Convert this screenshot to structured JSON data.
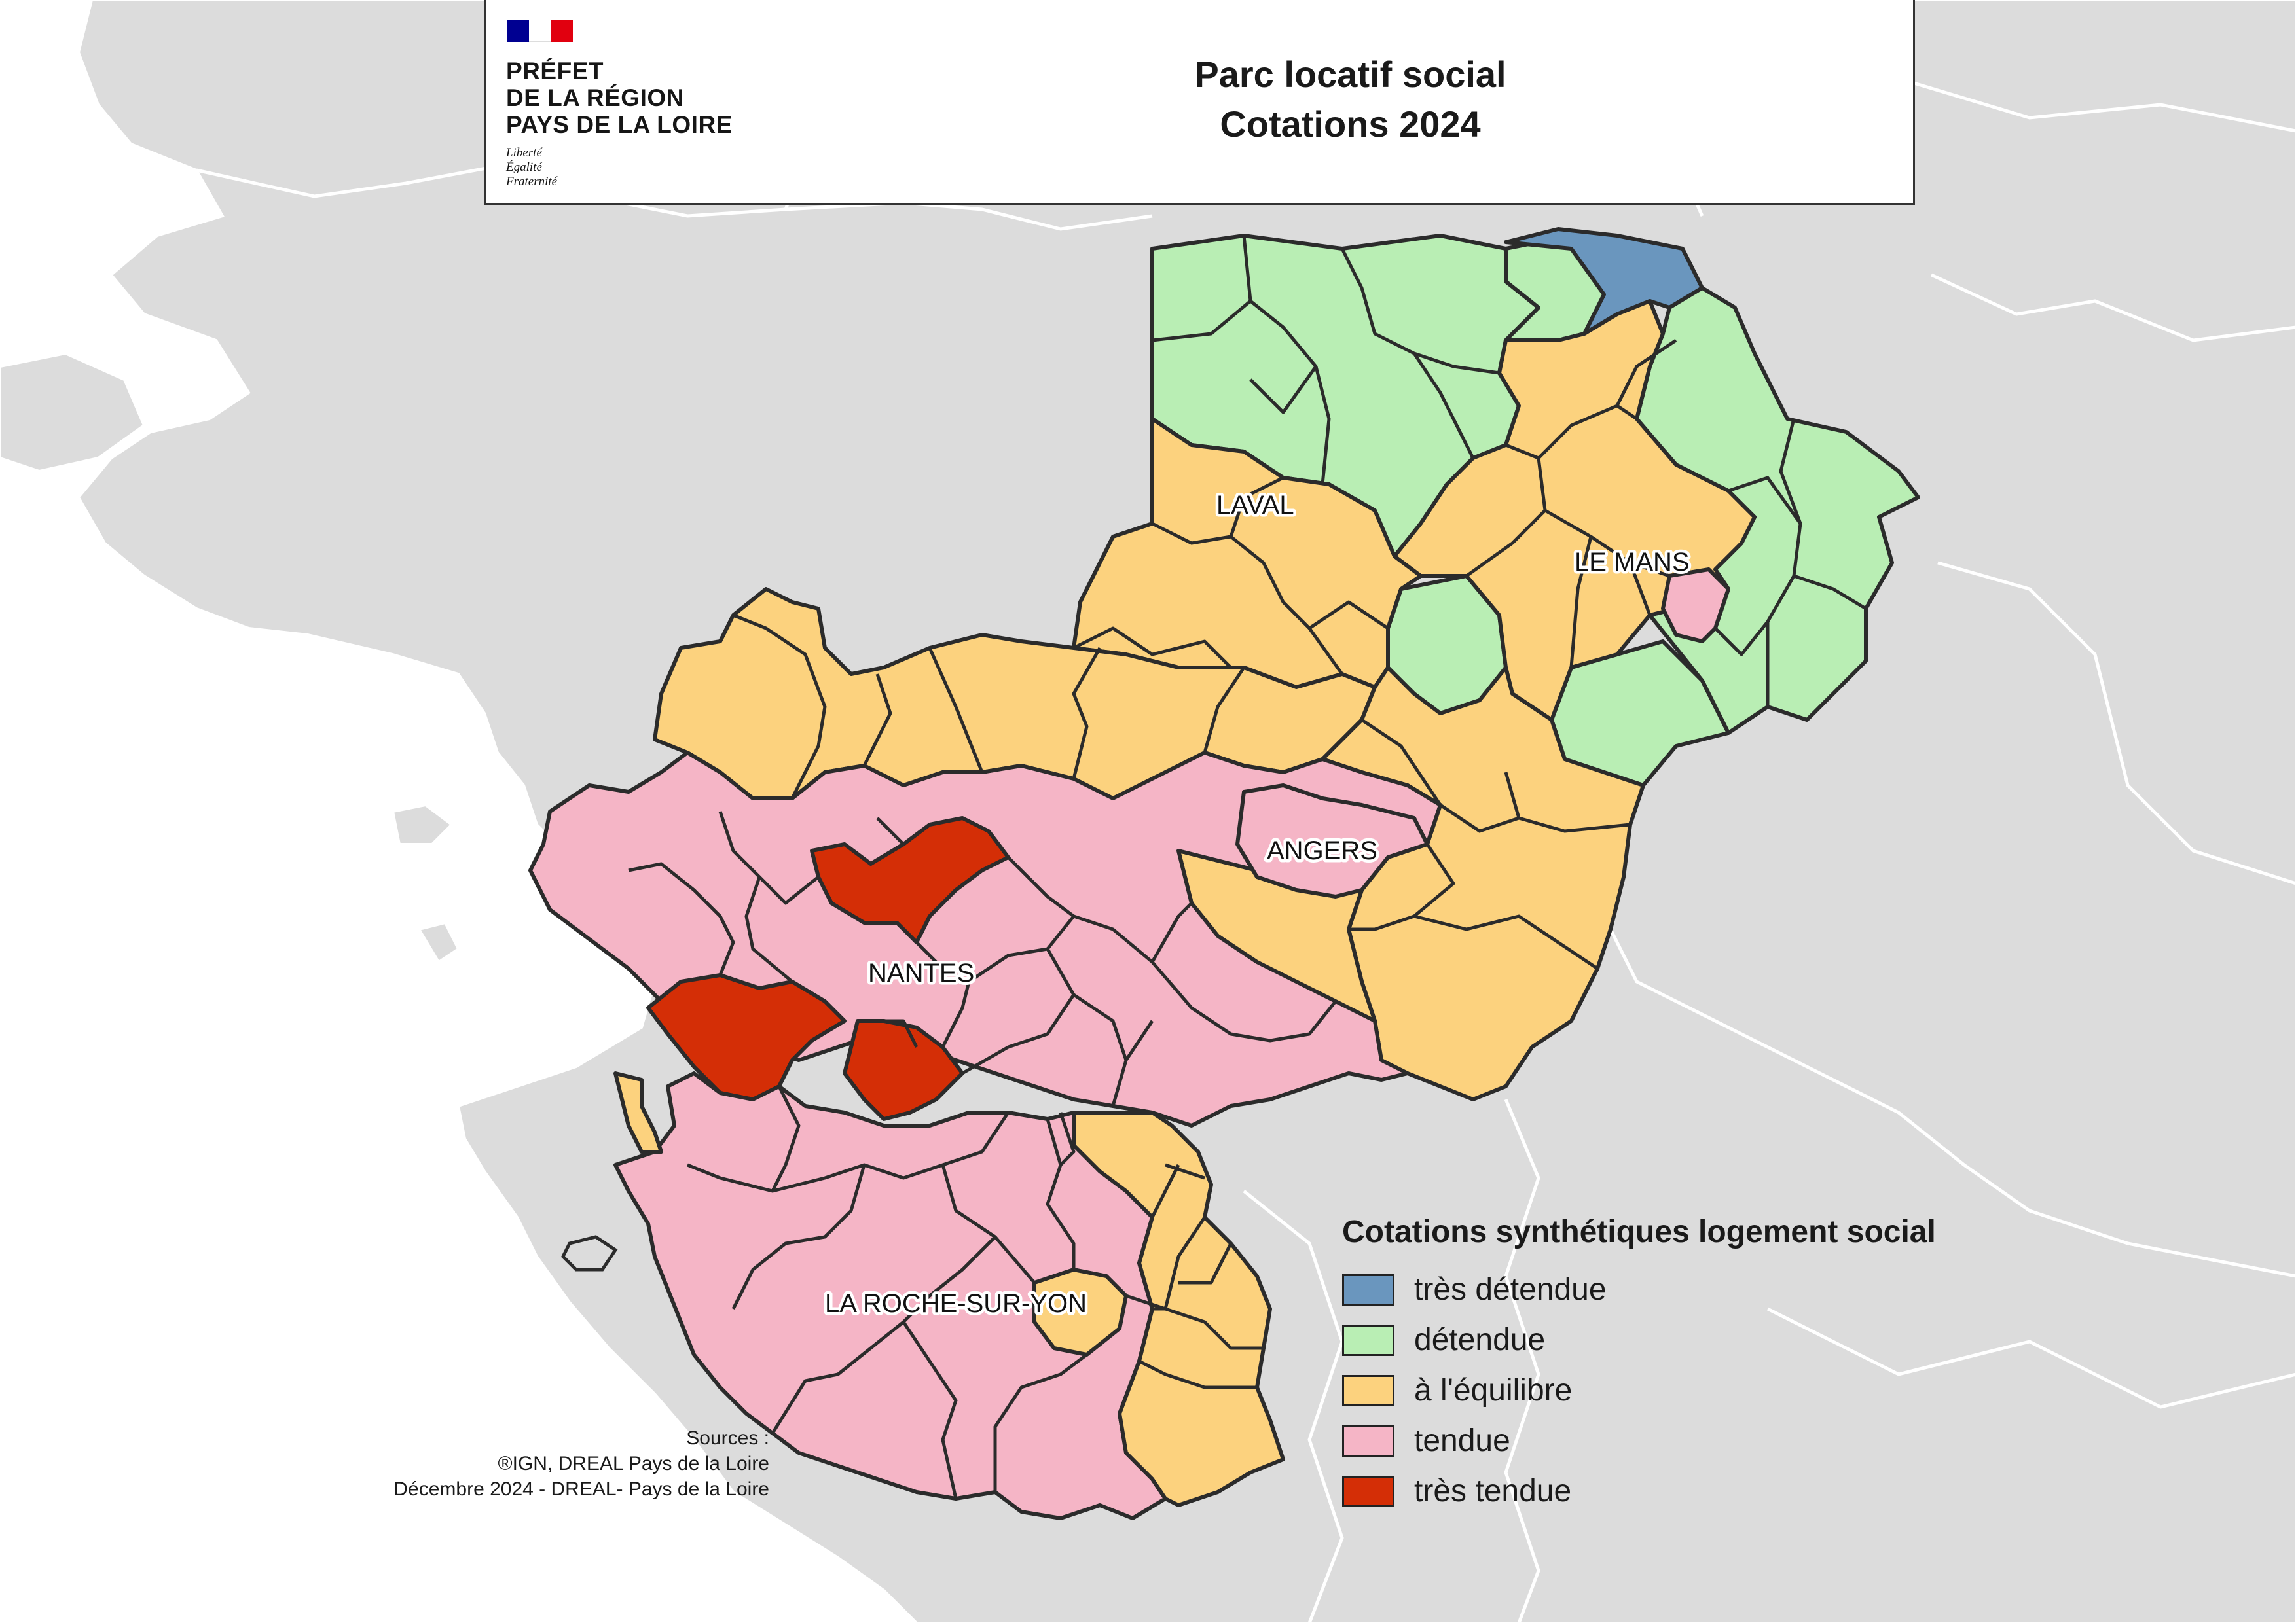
{
  "logo": {
    "lines": [
      "PRÉFET",
      "DE LA RÉGION",
      "PAYS DE LA LOIRE"
    ],
    "motto": [
      "Liberté",
      "Égalité",
      "Fraternité"
    ]
  },
  "title": {
    "line1": "Parc locatif social",
    "line2": "Cotations 2024"
  },
  "cities": {
    "laval": "LAVAL",
    "le_mans": "LE MANS",
    "angers": "ANGERS",
    "nantes": "NANTES",
    "la_roche_sur_yon": "LA ROCHE-SUR-YON"
  },
  "legend": {
    "title": "Cotations synthétiques logement social",
    "items": [
      {
        "label": "très détendue",
        "color": "#6a96be"
      },
      {
        "label": "détendue",
        "color": "#b9eeb4"
      },
      {
        "label": "à l'équilibre",
        "color": "#fcd27e"
      },
      {
        "label": "tendue",
        "color": "#f5b5c6"
      },
      {
        "label": "très tendue",
        "color": "#d42e06"
      }
    ]
  },
  "sources": {
    "line1": "Sources :",
    "line2": "®IGN, DREAL Pays de la Loire",
    "line3": "Décembre 2024 - DREAL- Pays de la Loire"
  },
  "colors": {
    "sea": "#ffffff",
    "land": "#dcdcdc",
    "boundary": "#ffffff",
    "zone_outline": "#2b2b2b"
  }
}
